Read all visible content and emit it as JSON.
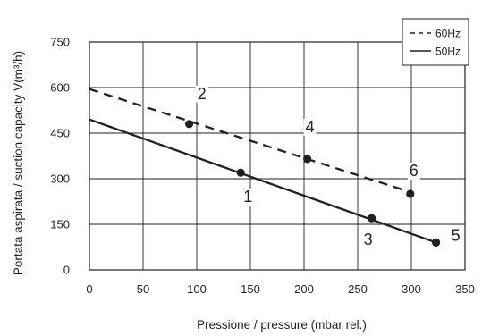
{
  "chart_data": {
    "type": "line",
    "title": "",
    "xlabel": "Pressione / pressure (mbar rel.)",
    "ylabel": "Portata aspirata / suction capacity V(m³/h)",
    "xlim": [
      0,
      350
    ],
    "ylim": [
      0,
      750
    ],
    "xticks": [
      "0",
      "50",
      "100",
      "150",
      "200",
      "250",
      "300",
      "350"
    ],
    "yticks": [
      "0",
      "150",
      "300",
      "450",
      "600",
      "750"
    ],
    "grid": true,
    "legend_position": "top-right",
    "series": [
      {
        "name": "60Hz",
        "style": "dashed",
        "color": "#231f20",
        "line": {
          "x": [
            0,
            300
          ],
          "y": [
            595,
            255
          ]
        },
        "points": [
          {
            "label": "2",
            "x": 93,
            "y": 480
          },
          {
            "label": "4",
            "x": 203,
            "y": 365
          },
          {
            "label": "6",
            "x": 299,
            "y": 250
          }
        ]
      },
      {
        "name": "50Hz",
        "style": "solid",
        "color": "#231f20",
        "line": {
          "x": [
            0,
            323
          ],
          "y": [
            495,
            90
          ]
        },
        "points": [
          {
            "label": "1",
            "x": 141,
            "y": 320
          },
          {
            "label": "3",
            "x": 263,
            "y": 170
          },
          {
            "label": "5",
            "x": 323,
            "y": 90
          }
        ]
      }
    ]
  }
}
